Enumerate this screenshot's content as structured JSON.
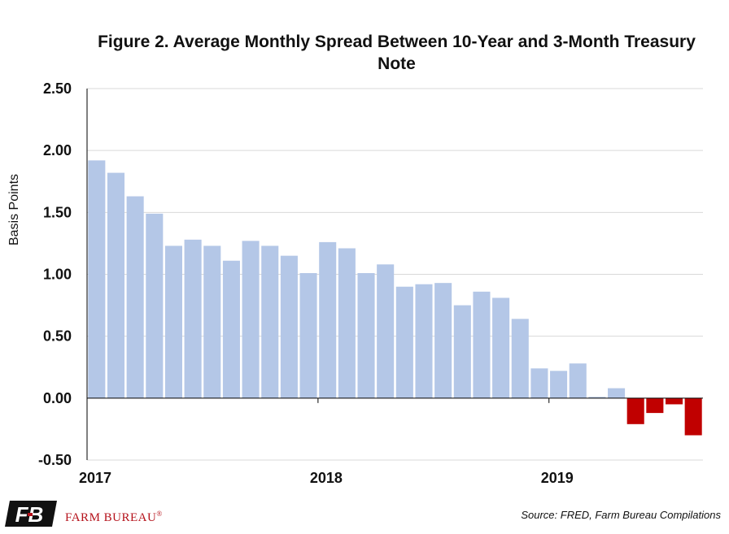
{
  "chart_data": {
    "type": "bar",
    "title": "Figure 2. Average Monthly Spread Between 10-Year and 3-Month Treasury Note",
    "ylabel": "Basis Points",
    "xlabel": "",
    "ylim": [
      -0.5,
      2.5
    ],
    "yticks": [
      "2.50",
      "2.00",
      "1.50",
      "1.00",
      "0.50",
      "0.00",
      "-0.50"
    ],
    "ytick_values": [
      2.5,
      2.0,
      1.5,
      1.0,
      0.5,
      0.0,
      -0.5
    ],
    "x_year_labels": [
      "2017",
      "2018",
      "2019"
    ],
    "categories": [
      "2017-01",
      "2017-02",
      "2017-03",
      "2017-04",
      "2017-05",
      "2017-06",
      "2017-07",
      "2017-08",
      "2017-09",
      "2017-10",
      "2017-11",
      "2017-12",
      "2018-01",
      "2018-02",
      "2018-03",
      "2018-04",
      "2018-05",
      "2018-06",
      "2018-07",
      "2018-08",
      "2018-09",
      "2018-10",
      "2018-11",
      "2018-12",
      "2019-01",
      "2019-02",
      "2019-03",
      "2019-04",
      "2019-05",
      "2019-06",
      "2019-07",
      "2019-08"
    ],
    "values": [
      1.92,
      1.82,
      1.63,
      1.49,
      1.23,
      1.28,
      1.23,
      1.11,
      1.27,
      1.23,
      1.15,
      1.01,
      1.26,
      1.21,
      1.01,
      1.08,
      0.9,
      0.92,
      0.93,
      0.75,
      0.86,
      0.81,
      0.64,
      0.24,
      0.22,
      0.28,
      0.01,
      0.08,
      -0.21,
      -0.12,
      -0.05,
      -0.3
    ],
    "grid": true,
    "colors": {
      "positive": "#b4c7e7",
      "negative": "#c00000",
      "grid": "#d9d9d9",
      "axis": "#000000"
    }
  },
  "footer": {
    "logo_mark": "FB",
    "brand_name": "FARM BUREAU",
    "brand_mark": "®",
    "source": "Source: FRED, Farm Bureau Compilations"
  }
}
